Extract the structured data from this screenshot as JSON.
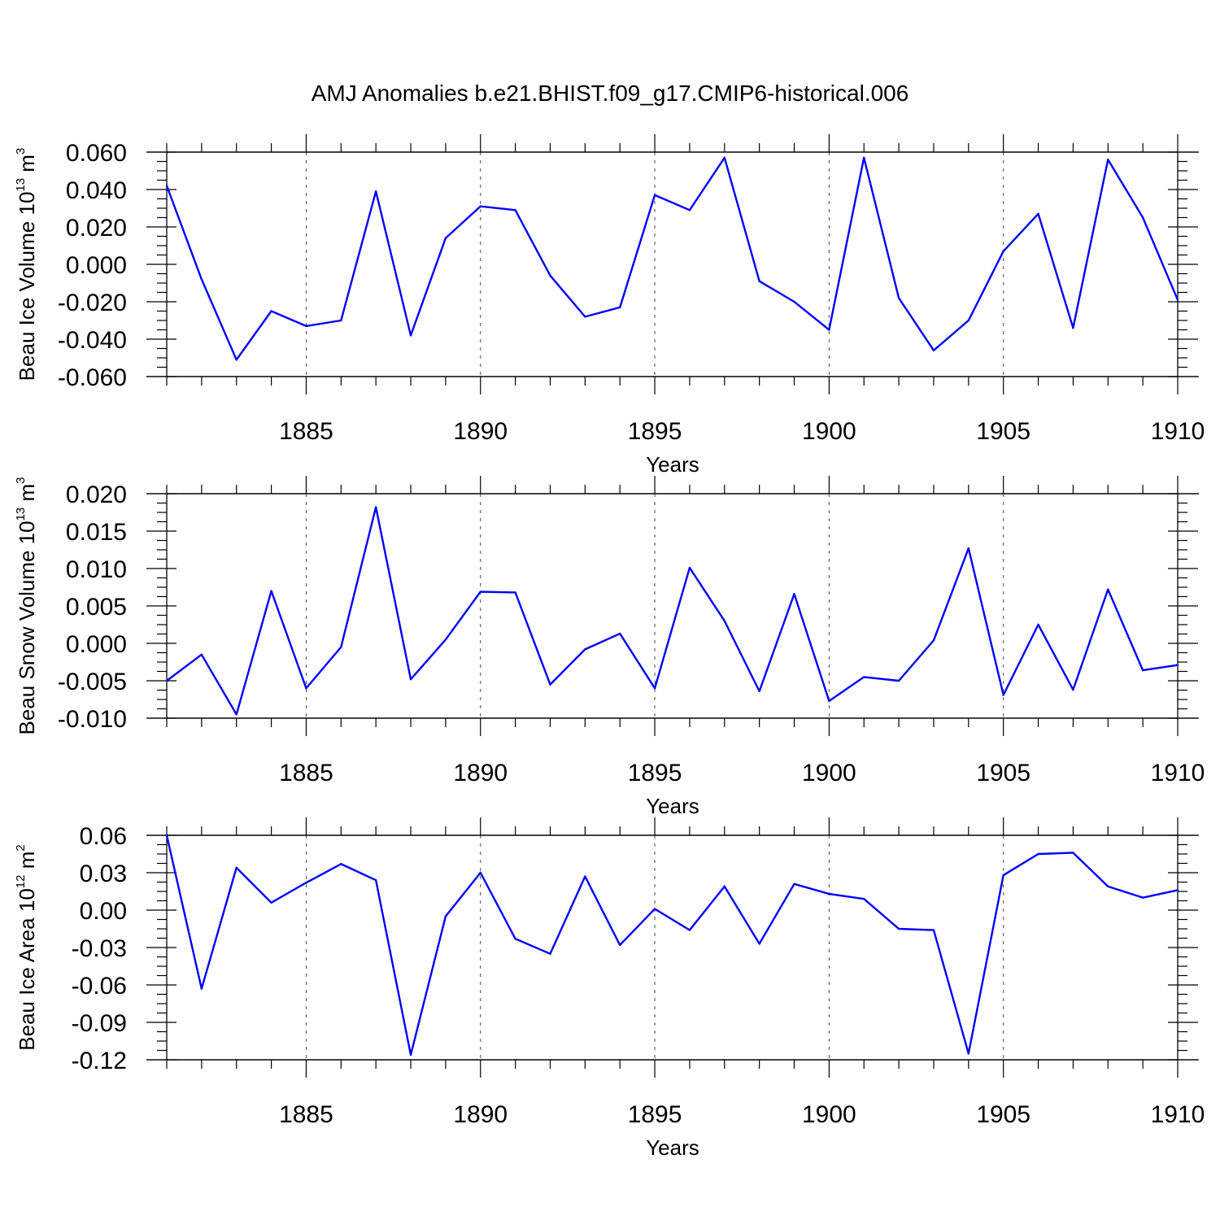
{
  "title": "AMJ Anomalies b.e21.BHIST.f09_g17.CMIP6-historical.006",
  "colors": {
    "series": "#0000ff",
    "axis": "#000000"
  },
  "chart_data": [
    {
      "type": "line",
      "ylabel": {
        "main": "Beau Ice Volume 10",
        "sup": "13",
        "tail": " m",
        "sup2": "3"
      },
      "xlabel": "Years",
      "xlim": [
        1881,
        1910
      ],
      "ylim": [
        -0.06,
        0.06
      ],
      "yticks": [
        -0.06,
        -0.04,
        -0.02,
        0.0,
        0.02,
        0.04,
        0.06
      ],
      "yticklabels": [
        "-0.060",
        "-0.040",
        "-0.020",
        "0.000",
        "0.020",
        "0.040",
        "0.060"
      ],
      "xticks": [
        1885,
        1890,
        1895,
        1900,
        1905,
        1910
      ],
      "xticklabels": [
        "1885",
        "1890",
        "1895",
        "1900",
        "1905",
        "1910"
      ],
      "grid": "vertical dashed at major x ticks",
      "x": [
        1881,
        1882,
        1883,
        1884,
        1885,
        1886,
        1887,
        1888,
        1889,
        1890,
        1891,
        1892,
        1893,
        1894,
        1895,
        1896,
        1897,
        1898,
        1899,
        1900,
        1901,
        1902,
        1903,
        1904,
        1905,
        1906,
        1907,
        1908,
        1909,
        1910
      ],
      "series": [
        {
          "values": [
            0.042,
            -0.008,
            -0.051,
            -0.025,
            -0.033,
            -0.03,
            0.039,
            -0.038,
            0.014,
            0.031,
            0.029,
            -0.006,
            -0.028,
            -0.023,
            0.037,
            0.029,
            0.057,
            -0.009,
            -0.02,
            -0.035,
            0.057,
            -0.018,
            -0.046,
            -0.03,
            0.007,
            0.027,
            -0.034,
            0.056,
            0.025,
            -0.019
          ]
        }
      ]
    },
    {
      "type": "line",
      "ylabel": {
        "main": "Beau Snow Volume 10",
        "sup": "13",
        "tail": " m",
        "sup2": "3"
      },
      "xlabel": "Years",
      "xlim": [
        1881,
        1910
      ],
      "ylim": [
        -0.01,
        0.02
      ],
      "yticks": [
        -0.01,
        -0.005,
        0.0,
        0.005,
        0.01,
        0.015,
        0.02
      ],
      "yticklabels": [
        "-0.010",
        "-0.005",
        "0.000",
        "0.005",
        "0.010",
        "0.015",
        "0.020"
      ],
      "xticks": [
        1885,
        1890,
        1895,
        1900,
        1905,
        1910
      ],
      "xticklabels": [
        "1885",
        "1890",
        "1895",
        "1900",
        "1905",
        "1910"
      ],
      "grid": "vertical dashed at major x ticks",
      "x": [
        1881,
        1882,
        1883,
        1884,
        1885,
        1886,
        1887,
        1888,
        1889,
        1890,
        1891,
        1892,
        1893,
        1894,
        1895,
        1896,
        1897,
        1898,
        1899,
        1900,
        1901,
        1902,
        1903,
        1904,
        1905,
        1906,
        1907,
        1908,
        1909,
        1910
      ],
      "series": [
        {
          "values": [
            -0.005,
            -0.0015,
            -0.0095,
            0.007,
            -0.006,
            -0.0005,
            0.0182,
            -0.0048,
            0.0005,
            0.0069,
            0.0068,
            -0.0055,
            -0.0008,
            0.0013,
            -0.006,
            0.0101,
            0.003,
            -0.0064,
            0.0066,
            -0.0077,
            -0.0045,
            -0.005,
            0.0004,
            0.0127,
            -0.0069,
            0.0025,
            -0.0062,
            0.0072,
            -0.0036,
            -0.0029
          ]
        }
      ]
    },
    {
      "type": "line",
      "ylabel": {
        "main": "Beau Ice Area 10",
        "sup": "12",
        "tail": " m",
        "sup2": "2"
      },
      "xlabel": "Years",
      "xlim": [
        1881,
        1910
      ],
      "ylim": [
        -0.12,
        0.06
      ],
      "yticks": [
        -0.12,
        -0.09,
        -0.06,
        -0.03,
        0.0,
        0.03,
        0.06
      ],
      "yticklabels": [
        "-0.12",
        "-0.09",
        "-0.06",
        "-0.03",
        "0.00",
        "0.03",
        "0.06"
      ],
      "xticks": [
        1885,
        1890,
        1895,
        1900,
        1905,
        1910
      ],
      "xticklabels": [
        "1885",
        "1890",
        "1895",
        "1900",
        "1905",
        "1910"
      ],
      "grid": "vertical dashed at major x ticks",
      "x": [
        1881,
        1882,
        1883,
        1884,
        1885,
        1886,
        1887,
        1888,
        1889,
        1890,
        1891,
        1892,
        1893,
        1894,
        1895,
        1896,
        1897,
        1898,
        1899,
        1900,
        1901,
        1902,
        1903,
        1904,
        1905,
        1906,
        1907,
        1908,
        1909,
        1910
      ],
      "series": [
        {
          "values": [
            0.06,
            -0.063,
            0.034,
            0.006,
            0.022,
            0.037,
            0.024,
            -0.116,
            -0.005,
            0.03,
            -0.023,
            -0.035,
            0.027,
            -0.028,
            0.001,
            -0.016,
            0.019,
            -0.027,
            0.021,
            0.013,
            0.009,
            -0.015,
            -0.016,
            -0.115,
            0.028,
            0.045,
            0.046,
            0.019,
            0.01,
            0.016
          ]
        }
      ]
    }
  ]
}
